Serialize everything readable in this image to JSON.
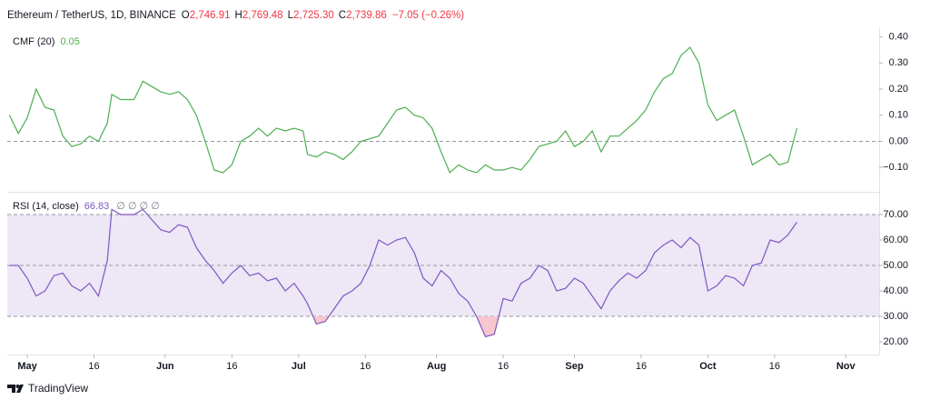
{
  "header": {
    "symbol": "Ethereum / TetherUS, 1D, BINANCE",
    "ohlc": [
      [
        "O",
        "2,746.91"
      ],
      [
        "H",
        "2,769.48"
      ],
      [
        "L",
        "2,725.30"
      ],
      [
        "C",
        "2,739.86"
      ]
    ],
    "change": "−7.05 (−0.26%)"
  },
  "footer": {
    "brand": "TradingView"
  },
  "chart_data": [
    {
      "type": "line",
      "title": "CMF (20)",
      "last_value_label": "0.05",
      "x": [
        -4,
        -2,
        0,
        2,
        4,
        6,
        8,
        10,
        12,
        14,
        16,
        18,
        19,
        21,
        24,
        26,
        28,
        30,
        32,
        34,
        36,
        38,
        40,
        42,
        44,
        46,
        48,
        50,
        52,
        54,
        56,
        58,
        60,
        62,
        63,
        65,
        67,
        69,
        71,
        73,
        75,
        77,
        79,
        81,
        83,
        85,
        87,
        89,
        91,
        93,
        95,
        97,
        99,
        101,
        103,
        105,
        107,
        109,
        111,
        113,
        115,
        117,
        119,
        121,
        123,
        125,
        127,
        129,
        131,
        133,
        135,
        137,
        139,
        141,
        143,
        145,
        147,
        149,
        151,
        153,
        155,
        157,
        159,
        161,
        163,
        165,
        167,
        169,
        171,
        173
      ],
      "series": [
        {
          "color": "#4caf50",
          "values": [
            0.1,
            0.03,
            0.09,
            0.2,
            0.13,
            0.12,
            0.02,
            -0.02,
            -0.01,
            0.02,
            0.0,
            0.07,
            0.18,
            0.16,
            0.16,
            0.23,
            0.21,
            0.19,
            0.18,
            0.19,
            0.16,
            0.1,
            0.0,
            -0.11,
            -0.12,
            -0.09,
            0.0,
            0.02,
            0.05,
            0.02,
            0.05,
            0.04,
            0.05,
            0.04,
            -0.05,
            -0.06,
            -0.04,
            -0.05,
            -0.07,
            -0.04,
            0.0,
            0.01,
            0.02,
            0.07,
            0.12,
            0.13,
            0.1,
            0.09,
            0.05,
            -0.04,
            -0.12,
            -0.09,
            -0.11,
            -0.12,
            -0.09,
            -0.11,
            -0.11,
            -0.1,
            -0.11,
            -0.07,
            -0.02,
            -0.01,
            0.0,
            0.04,
            -0.02,
            0.0,
            0.04,
            -0.04,
            0.02,
            0.02,
            0.05,
            0.08,
            0.12,
            0.19,
            0.24,
            0.26,
            0.33,
            0.36,
            0.3,
            0.14,
            0.08,
            0.1,
            0.12,
            0.02,
            -0.09,
            -0.07,
            -0.05,
            -0.09,
            -0.08,
            0.05
          ]
        }
      ],
      "xlim": [
        -4.5,
        191.5
      ],
      "ylim": [
        -0.19,
        0.43
      ],
      "yticks": [
        {
          "value": 0.4,
          "label": "0.40"
        },
        {
          "value": 0.3,
          "label": "0.30"
        },
        {
          "value": 0.2,
          "label": "0.20"
        },
        {
          "value": 0.1,
          "label": "0.10"
        },
        {
          "value": 0,
          "label": "0.00"
        },
        {
          "value": -0.1,
          "label": "−0.10"
        }
      ],
      "levels": [
        0
      ]
    },
    {
      "type": "line",
      "title": "RSI (14, close)",
      "last_value_label": "66.83",
      "extra_label": "∅ ∅ ∅ ∅",
      "x": [
        -4,
        -2,
        0,
        2,
        4,
        6,
        8,
        10,
        12,
        14,
        16,
        18,
        19,
        21,
        24,
        26,
        28,
        30,
        32,
        34,
        36,
        38,
        40,
        42,
        44,
        46,
        48,
        50,
        52,
        54,
        56,
        58,
        60,
        62,
        63,
        65,
        67,
        69,
        71,
        73,
        75,
        77,
        79,
        81,
        83,
        85,
        87,
        89,
        91,
        93,
        95,
        97,
        99,
        101,
        103,
        105,
        107,
        109,
        111,
        113,
        115,
        117,
        119,
        121,
        123,
        125,
        127,
        129,
        131,
        133,
        135,
        137,
        139,
        141,
        143,
        145,
        147,
        149,
        151,
        153,
        155,
        157,
        159,
        161,
        163,
        165,
        167,
        169,
        171,
        173
      ],
      "series": [
        {
          "color": "#7e57c2",
          "values": [
            50,
            50,
            45,
            38,
            40,
            46,
            47,
            42,
            40,
            43,
            38,
            52,
            72,
            70,
            70,
            72,
            68,
            64,
            63,
            66,
            65,
            57,
            52,
            48,
            43,
            47,
            50,
            46,
            47,
            44,
            45,
            40,
            43,
            38,
            35,
            27,
            28,
            33,
            38,
            40,
            43,
            50,
            60,
            58,
            60,
            61,
            55,
            45,
            42,
            48,
            45,
            39,
            36,
            30,
            22,
            23,
            37,
            36,
            43,
            45,
            50,
            48,
            40,
            41,
            45,
            43,
            38,
            33,
            40,
            44,
            47,
            45,
            48,
            55,
            58,
            60,
            57,
            61,
            58,
            40,
            42,
            46,
            45,
            42,
            50,
            51,
            60,
            59,
            62,
            67
          ]
        }
      ],
      "xlim": [
        -4.5,
        191.5
      ],
      "ylim": [
        15.7,
        78.2
      ],
      "yticks": [
        {
          "value": 70,
          "label": "70.00"
        },
        {
          "value": 60,
          "label": "60.00"
        },
        {
          "value": 50,
          "label": "50.00"
        },
        {
          "value": 40,
          "label": "40.00"
        },
        {
          "value": 30,
          "label": "30.00"
        },
        {
          "value": 20,
          "label": "20.00"
        }
      ],
      "levels": [
        70,
        50,
        30
      ],
      "band": [
        30,
        70
      ],
      "band_color": "#ede7f6",
      "oversold_color": "#f8c6cf",
      "xticks": [
        {
          "value": 0,
          "label": "May"
        },
        {
          "value": 15,
          "label": "16"
        },
        {
          "value": 31,
          "label": "Jun"
        },
        {
          "value": 46,
          "label": "16"
        },
        {
          "value": 61,
          "label": "Jul"
        },
        {
          "value": 76,
          "label": "16"
        },
        {
          "value": 92,
          "label": "Aug"
        },
        {
          "value": 107,
          "label": "16"
        },
        {
          "value": 123,
          "label": "Sep"
        },
        {
          "value": 138,
          "label": "16"
        },
        {
          "value": 153,
          "label": "Oct"
        },
        {
          "value": 168,
          "label": "16"
        },
        {
          "value": 184,
          "label": "Nov"
        }
      ]
    }
  ]
}
